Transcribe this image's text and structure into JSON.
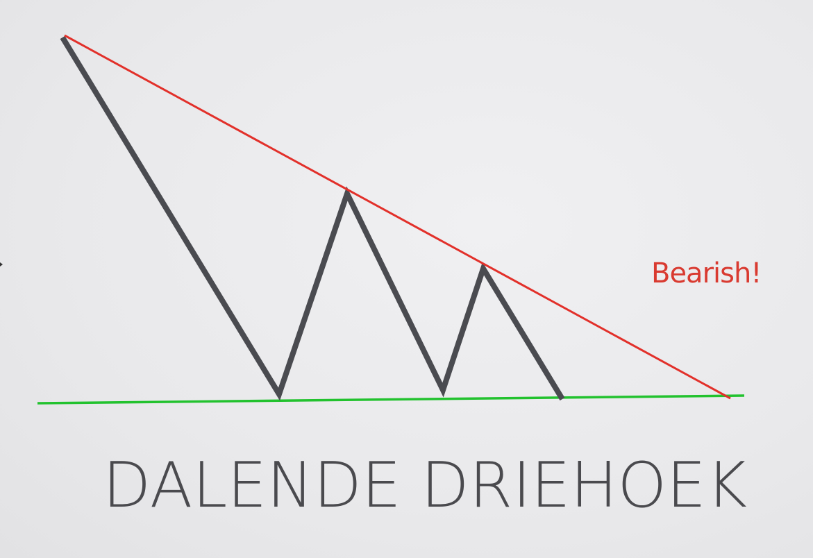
{
  "annotation": "Bearish!",
  "title": "DALENDE DRIEHOEK",
  "colors": {
    "price_line": "#4a4b50",
    "resistance_line": "#e2302a",
    "support_line": "#22c22e",
    "annotation": "#d93a30",
    "title": "#4a4a4e"
  }
}
